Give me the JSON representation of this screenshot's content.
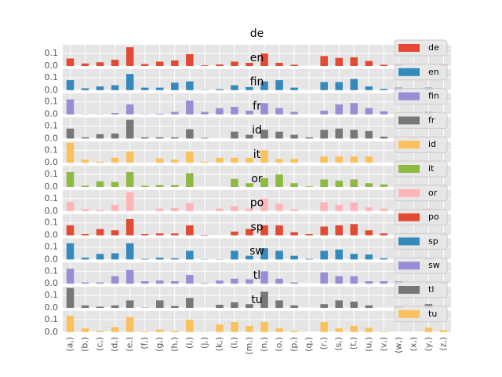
{
  "chart_data": [
    {
      "type": "bar",
      "title": "de",
      "series": [
        {
          "name": "de",
          "color": "#E24A33",
          "values": [
            0.06,
            0.02,
            0.03,
            0.05,
            0.15,
            0.015,
            0.035,
            0.045,
            0.095,
            0.005,
            0.012,
            0.035,
            0.025,
            0.1,
            0.025,
            0.01,
            0,
            0.08,
            0.065,
            0.07,
            0.04,
            0.01,
            0.015,
            0,
            0,
            0.011
          ]
        }
      ],
      "ylim": [
        0,
        0.17
      ],
      "yticks": [
        {
          "value": 0,
          "label": "0.0"
        },
        0.1
      ],
      "grid": true
    },
    {
      "type": "bar",
      "title": "en",
      "series": [
        {
          "name": "en",
          "color": "#348ABD",
          "values": [
            0.08,
            0.015,
            0.03,
            0.04,
            0.13,
            0.02,
            0.02,
            0.06,
            0.07,
            0.002,
            0.008,
            0.04,
            0.025,
            0.07,
            0.08,
            0.02,
            0.001,
            0.065,
            0.065,
            0.09,
            0.03,
            0.01,
            0.02,
            0.002,
            0.02,
            0.001
          ]
        }
      ],
      "ylim": [
        0,
        0.17
      ],
      "yticks": [
        {
          "value": 0,
          "label": "0.0"
        },
        0.1
      ],
      "grid": true
    },
    {
      "type": "bar",
      "title": "fin",
      "series": [
        {
          "name": "fin",
          "color": "#988ED5",
          "values": [
            0.12,
            0.002,
            0.002,
            0.01,
            0.08,
            0.002,
            0.005,
            0.02,
            0.11,
            0.02,
            0.05,
            0.06,
            0.03,
            0.09,
            0.05,
            0.02,
            0,
            0.03,
            0.08,
            0.09,
            0.05,
            0.025,
            0,
            0,
            0.02,
            0
          ]
        }
      ],
      "ylim": [
        0,
        0.17
      ],
      "yticks": [
        {
          "value": 0,
          "label": "0.0"
        },
        0.1
      ],
      "grid": true
    },
    {
      "type": "bar",
      "title": "fr",
      "series": [
        {
          "name": "fr",
          "color": "#777777",
          "values": [
            0.08,
            0.01,
            0.035,
            0.04,
            0.15,
            0.01,
            0.01,
            0.01,
            0.075,
            0.005,
            0,
            0.055,
            0.03,
            0.07,
            0.055,
            0.03,
            0.01,
            0.07,
            0.08,
            0.07,
            0.06,
            0.015,
            0,
            0.004,
            0.003,
            0.001
          ]
        }
      ],
      "ylim": [
        0,
        0.17
      ],
      "yticks": [
        {
          "value": 0,
          "label": "0.0"
        },
        0.1
      ],
      "grid": true
    },
    {
      "type": "bar",
      "title": "id",
      "series": [
        {
          "name": "id",
          "color": "#FBC15E",
          "values": [
            0.16,
            0.025,
            0.008,
            0.04,
            0.09,
            0.002,
            0.035,
            0.025,
            0.09,
            0.008,
            0.04,
            0.04,
            0.04,
            0.1,
            0.03,
            0.03,
            0,
            0.05,
            0.05,
            0.05,
            0.05,
            0,
            0.005,
            0,
            0.01,
            0
          ]
        }
      ],
      "ylim": [
        0,
        0.17
      ],
      "yticks": [
        {
          "value": 0,
          "label": "0.0"
        },
        0.1
      ],
      "grid": true
    },
    {
      "type": "bar",
      "title": "it",
      "series": [
        {
          "name": "it",
          "color": "#8EBA42",
          "values": [
            0.12,
            0.01,
            0.045,
            0.04,
            0.12,
            0.01,
            0.015,
            0.015,
            0.11,
            0,
            0,
            0.065,
            0.03,
            0.07,
            0.1,
            0.03,
            0.005,
            0.06,
            0.05,
            0.06,
            0.03,
            0.02,
            0,
            0,
            0,
            0.01
          ]
        }
      ],
      "ylim": [
        0,
        0.17
      ],
      "yticks": [
        {
          "value": 0,
          "label": "0.0"
        },
        0.1
      ],
      "grid": true
    },
    {
      "type": "bar",
      "title": "or",
      "series": [
        {
          "name": "or",
          "color": "#FFB5B8",
          "values": [
            0.075,
            0.015,
            0.01,
            0.05,
            0.15,
            0.002,
            0.02,
            0.025,
            0.065,
            0.002,
            0.02,
            0.04,
            0.02,
            0.1,
            0.06,
            0.015,
            0,
            0.07,
            0.05,
            0.07,
            0.03,
            0.02,
            0.01,
            0,
            0.02,
            0
          ]
        }
      ],
      "ylim": [
        0,
        0.17
      ],
      "yticks": [
        {
          "value": 0,
          "label": "0.0"
        },
        0.1
      ],
      "grid": true
    },
    {
      "type": "bar",
      "title": "po",
      "series": [
        {
          "name": "po",
          "color": "#E24A33",
          "values": [
            0.08,
            0.01,
            0.05,
            0.04,
            0.13,
            0.01,
            0.015,
            0.015,
            0.08,
            0.004,
            0,
            0.03,
            0.05,
            0.08,
            0.08,
            0.025,
            0.01,
            0.07,
            0.08,
            0.09,
            0.04,
            0.015,
            0,
            0.002,
            0,
            0.005
          ]
        }
      ],
      "ylim": [
        0,
        0.17
      ],
      "yticks": [
        {
          "value": 0,
          "label": "0.0"
        },
        0.1
      ],
      "grid": true
    },
    {
      "type": "bar",
      "title": "sp",
      "series": [
        {
          "name": "sp",
          "color": "#348ABD",
          "values": [
            0.13,
            0.015,
            0.045,
            0.05,
            0.13,
            0.005,
            0.015,
            0.01,
            0.07,
            0.002,
            0.002,
            0.07,
            0.03,
            0.09,
            0.07,
            0.03,
            0.005,
            0.07,
            0.08,
            0.045,
            0.04,
            0.01,
            0.001,
            0,
            0.01,
            0.002
          ]
        }
      ],
      "ylim": [
        0,
        0.17
      ],
      "yticks": [
        {
          "value": 0,
          "label": "0.0"
        },
        0.1
      ],
      "grid": true
    },
    {
      "type": "bar",
      "title": "sw",
      "series": [
        {
          "name": "sw",
          "color": "#988ED5",
          "values": [
            0.12,
            0.01,
            0.01,
            0.06,
            0.11,
            0.02,
            0.025,
            0.02,
            0.07,
            0.005,
            0.025,
            0.04,
            0.035,
            0.1,
            0.04,
            0.01,
            0,
            0.09,
            0.06,
            0.06,
            0.02,
            0.02,
            0.02,
            0,
            0.01,
            0.01
          ]
        }
      ],
      "ylim": [
        0,
        0.17
      ],
      "yticks": [
        {
          "value": 0,
          "label": "0.0"
        },
        0.1
      ],
      "grid": true
    },
    {
      "type": "bar",
      "title": "tl",
      "series": [
        {
          "name": "tl",
          "color": "#777777",
          "values": [
            0.16,
            0.02,
            0.01,
            0.02,
            0.06,
            0.002,
            0.06,
            0.015,
            0.08,
            0,
            0.025,
            0.045,
            0.03,
            0.13,
            0.06,
            0.02,
            0,
            0.03,
            0.06,
            0.05,
            0.02,
            0,
            0.01,
            0,
            0.03,
            0
          ]
        }
      ],
      "ylim": [
        0,
        0.17
      ],
      "yticks": [
        {
          "value": 0,
          "label": "0.0"
        },
        0.1
      ],
      "grid": true
    },
    {
      "type": "bar",
      "title": "tu",
      "categories": [
        "(a,)",
        "(b,)",
        "(c,)",
        "(d,)",
        "(e,)",
        "(f,)",
        "(g,)",
        "(h,)",
        "(i,)",
        "(j,)",
        "(k,)",
        "(l,)",
        "(m,)",
        "(n,)",
        "(o,)",
        "(p,)",
        "(q,)",
        "(r,)",
        "(s,)",
        "(t,)",
        "(u,)",
        "(v,)",
        "(w,)",
        "(x,)",
        "(y,)",
        "(z,)"
      ],
      "series": [
        {
          "name": "tu",
          "color": "#FBC15E",
          "values": [
            0.13,
            0.03,
            0.01,
            0.04,
            0.12,
            0.005,
            0.02,
            0.01,
            0.1,
            0.002,
            0.06,
            0.08,
            0.05,
            0.08,
            0.03,
            0.01,
            0,
            0.08,
            0.03,
            0.05,
            0.035,
            0.005,
            0,
            0,
            0.035,
            0.015
          ]
        }
      ],
      "ylim": [
        0,
        0.17
      ],
      "yticks": [
        {
          "value": 0,
          "label": "0.0"
        },
        0.1
      ],
      "grid": true
    }
  ]
}
